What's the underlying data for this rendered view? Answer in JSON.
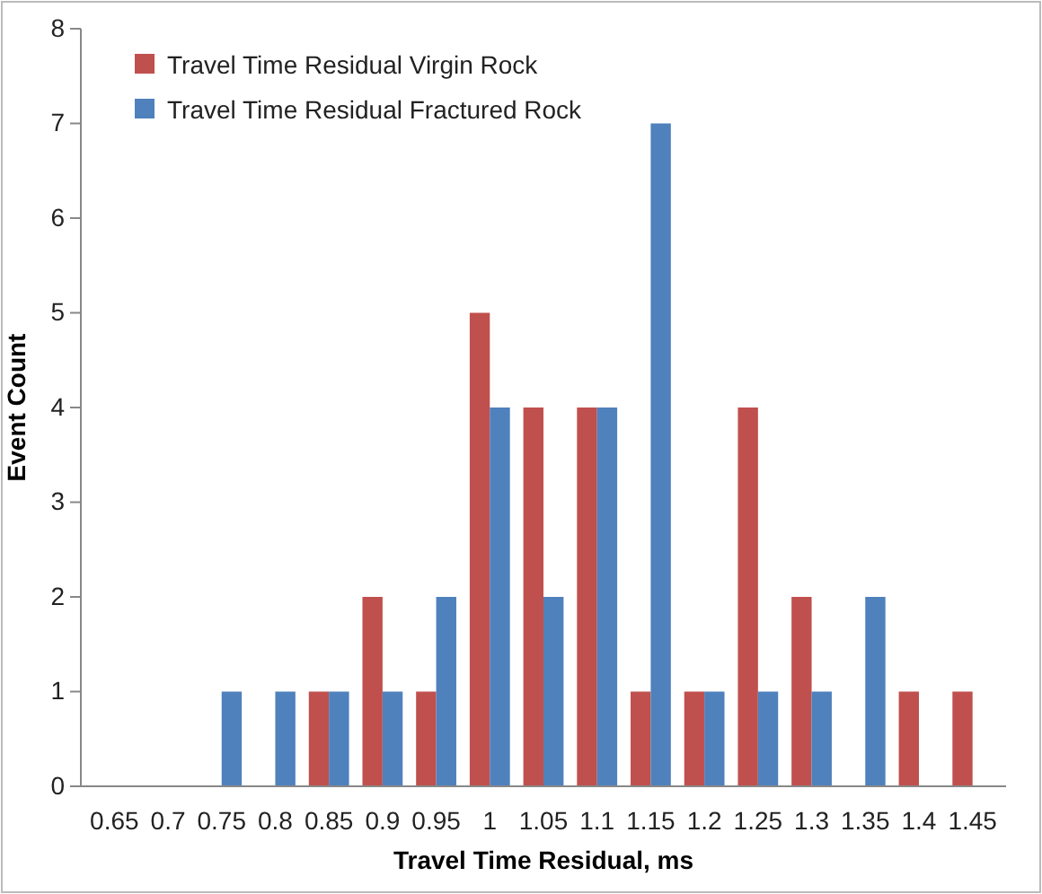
{
  "chart_data": {
    "type": "bar",
    "xlabel": "Travel Time Residual, ms",
    "ylabel": "Event Count",
    "categories": [
      "0.65",
      "0.7",
      "0.75",
      "0.8",
      "0.85",
      "0.9",
      "0.95",
      "1",
      "1.05",
      "1.1",
      "1.15",
      "1.2",
      "1.25",
      "1.3",
      "1.35",
      "1.4",
      "1.45"
    ],
    "series": [
      {
        "name": "Travel Time Residual Virgin Rock",
        "color": "#c0504d",
        "values": [
          0,
          0,
          0,
          0,
          1,
          2,
          1,
          5,
          4,
          4,
          1,
          1,
          4,
          2,
          0,
          1,
          1
        ]
      },
      {
        "name": "Travel Time Residual Fractured Rock",
        "color": "#4f81bd",
        "values": [
          0,
          0,
          1,
          1,
          1,
          1,
          2,
          4,
          2,
          4,
          7,
          1,
          1,
          1,
          2,
          0,
          0
        ]
      }
    ],
    "ylim": [
      0,
      8
    ],
    "yticks": [
      0,
      1,
      2,
      3,
      4,
      5,
      6,
      7,
      8
    ],
    "grid": false,
    "legend": "top left"
  }
}
